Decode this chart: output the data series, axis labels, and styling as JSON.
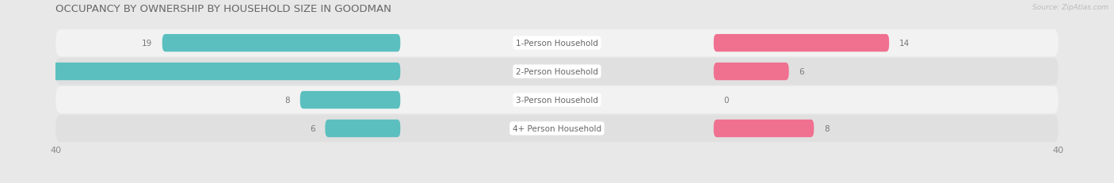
{
  "title": "OCCUPANCY BY OWNERSHIP BY HOUSEHOLD SIZE IN GOODMAN",
  "source": "Source: ZipAtlas.com",
  "categories": [
    "1-Person Household",
    "2-Person Household",
    "3-Person Household",
    "4+ Person Household"
  ],
  "owner_values": [
    19,
    39,
    8,
    6
  ],
  "renter_values": [
    14,
    6,
    0,
    8
  ],
  "owner_color": "#5BBFBF",
  "renter_color": "#F07090",
  "axis_max": 40,
  "background_color": "#e8e8e8",
  "row_colors": [
    "#f2f2f2",
    "#e0e0e0",
    "#f2f2f2",
    "#e0e0e0"
  ],
  "title_fontsize": 9.5,
  "label_fontsize": 7.5,
  "tick_fontsize": 8,
  "category_fontsize": 7.5,
  "value_fontsize": 7.5
}
